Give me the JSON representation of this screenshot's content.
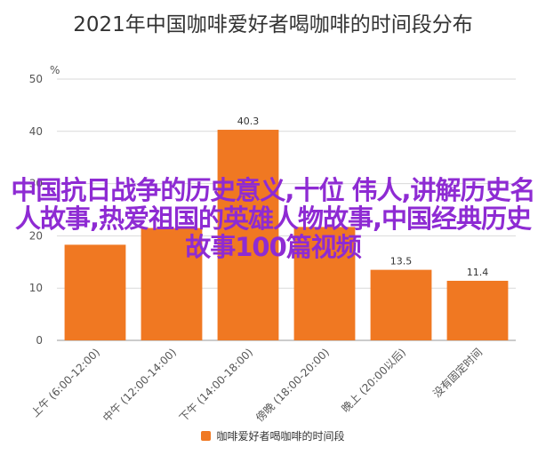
{
  "chart_data": {
    "type": "bar",
    "title": "2021年中国咖啡爱好者喝咖啡的时间段分布",
    "ylabel": "%",
    "ylim": [
      0,
      50
    ],
    "yticks": [
      0,
      10,
      20,
      30,
      40,
      50
    ],
    "grid": true,
    "legend_position": "bottom",
    "categories": [
      "上午 (6:00-12:00)",
      "中午 (12:00-14:00)",
      "下午 (14:00-18:00)",
      "傍晚 (18:00-20:00)",
      "晚上 (20:00以后)",
      "没有固定时间"
    ],
    "series": [
      {
        "name": "咖啡爱好者喝咖啡的时间段",
        "values": [
          18.3,
          21.5,
          40.3,
          21.7,
          13.5,
          11.4
        ],
        "labels": [
          "",
          "",
          "40.3",
          "",
          "13.5",
          "11.4"
        ],
        "color": "#F07822"
      }
    ]
  },
  "overlay_text": "中国抗日战争的历史意义,十位 伟人,讲解历史名人故事,热爱祖国的英雄人物故事,中国经典历史故事100篇视频",
  "colors": {
    "bar": "#F07822",
    "overlay": "#8E2BD3",
    "grid": "#D9D9D9"
  }
}
